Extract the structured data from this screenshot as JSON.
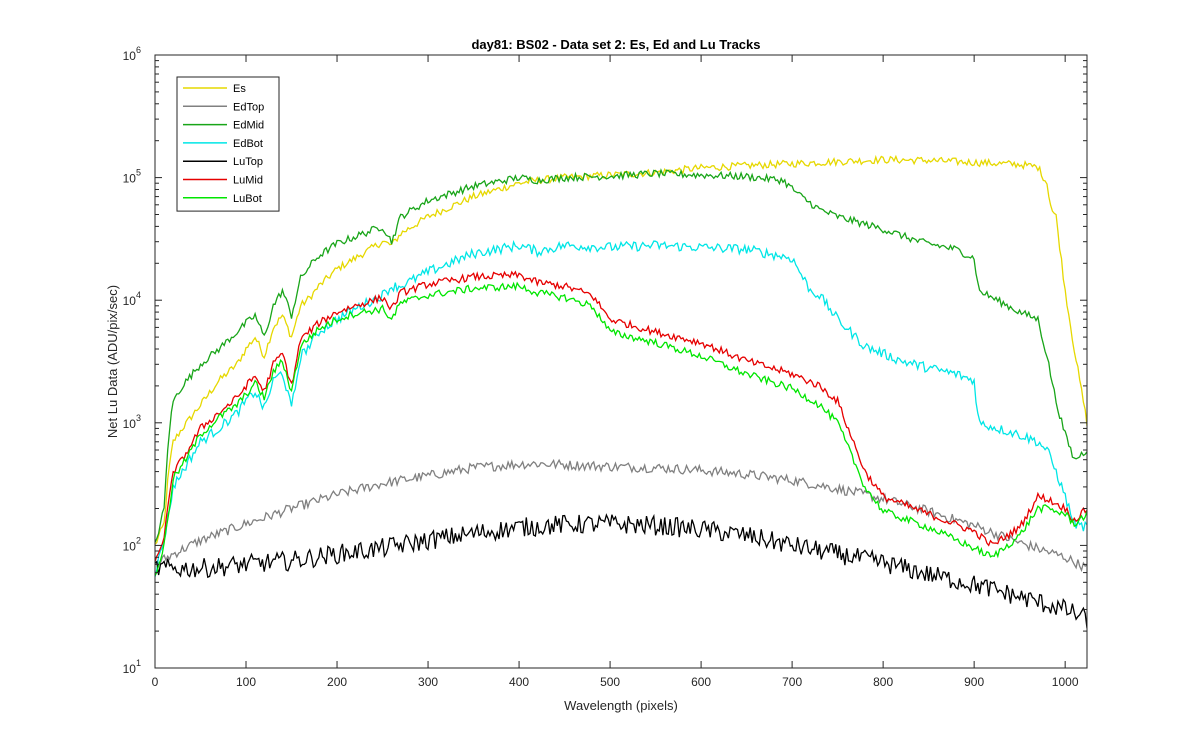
{
  "chart_data": {
    "type": "line",
    "title": "day81: BS02 - Data set 2: Es, Ed and Lu Tracks",
    "xlabel": "Wavelength (pixels)",
    "ylabel": "Net Lu Data (ADU/pix/sec)",
    "xlim": [
      0,
      1024
    ],
    "ylim": [
      10,
      1000000
    ],
    "yscale": "log",
    "x_ticks": [
      0,
      100,
      200,
      300,
      400,
      500,
      600,
      700,
      800,
      900,
      1000
    ],
    "y_ticks": [
      {
        "value": 10,
        "base": "10",
        "exp": "1"
      },
      {
        "value": 100,
        "base": "10",
        "exp": "2"
      },
      {
        "value": 1000,
        "base": "10",
        "exp": "3"
      },
      {
        "value": 10000,
        "base": "10",
        "exp": "4"
      },
      {
        "value": 100000,
        "base": "10",
        "exp": "5"
      },
      {
        "value": 1000000,
        "base": "10",
        "exp": "6"
      }
    ],
    "grid": false,
    "legend_position": "top-left",
    "series": [
      {
        "name": "Es",
        "color": "#e6d800",
        "noise": 0.03,
        "points": [
          [
            0,
            100
          ],
          [
            10,
            150
          ],
          [
            15,
            400
          ],
          [
            20,
            700
          ],
          [
            30,
            900
          ],
          [
            50,
            1400
          ],
          [
            70,
            2200
          ],
          [
            90,
            3000
          ],
          [
            100,
            4000
          ],
          [
            110,
            5000
          ],
          [
            120,
            3500
          ],
          [
            130,
            6000
          ],
          [
            140,
            7500
          ],
          [
            150,
            5000
          ],
          [
            160,
            9000
          ],
          [
            170,
            10500
          ],
          [
            180,
            13000
          ],
          [
            200,
            18000
          ],
          [
            220,
            22000
          ],
          [
            250,
            30000
          ],
          [
            260,
            28000
          ],
          [
            270,
            35000
          ],
          [
            300,
            48000
          ],
          [
            350,
            70000
          ],
          [
            400,
            90000
          ],
          [
            420,
            95000
          ],
          [
            450,
            100000
          ],
          [
            500,
            105000
          ],
          [
            550,
            110000
          ],
          [
            600,
            120000
          ],
          [
            650,
            125000
          ],
          [
            700,
            130000
          ],
          [
            750,
            135000
          ],
          [
            800,
            140000
          ],
          [
            850,
            138000
          ],
          [
            900,
            133000
          ],
          [
            950,
            128000
          ],
          [
            970,
            122000
          ],
          [
            980,
            90000
          ],
          [
            985,
            55000
          ],
          [
            990,
            48000
          ],
          [
            1000,
            12000
          ],
          [
            1010,
            4000
          ],
          [
            1024,
            1000
          ]
        ]
      },
      {
        "name": "EdTop",
        "color": "#808080",
        "noise": 0.04,
        "points": [
          [
            0,
            70
          ],
          [
            20,
            85
          ],
          [
            50,
            110
          ],
          [
            100,
            150
          ],
          [
            150,
            200
          ],
          [
            200,
            260
          ],
          [
            250,
            320
          ],
          [
            300,
            370
          ],
          [
            350,
            430
          ],
          [
            400,
            460
          ],
          [
            420,
            465
          ],
          [
            450,
            455
          ],
          [
            500,
            440
          ],
          [
            550,
            430
          ],
          [
            600,
            410
          ],
          [
            650,
            380
          ],
          [
            700,
            340
          ],
          [
            750,
            290
          ],
          [
            800,
            240
          ],
          [
            850,
            190
          ],
          [
            900,
            145
          ],
          [
            950,
            105
          ],
          [
            1000,
            80
          ],
          [
            1024,
            65
          ]
        ]
      },
      {
        "name": "EdMid",
        "color": "#19a519",
        "noise": 0.03,
        "points": [
          [
            0,
            100
          ],
          [
            10,
            200
          ],
          [
            15,
            800
          ],
          [
            20,
            1500
          ],
          [
            30,
            2000
          ],
          [
            50,
            3000
          ],
          [
            70,
            4000
          ],
          [
            90,
            5500
          ],
          [
            100,
            6500
          ],
          [
            110,
            7500
          ],
          [
            120,
            5000
          ],
          [
            130,
            9000
          ],
          [
            140,
            12000
          ],
          [
            150,
            7500
          ],
          [
            160,
            15000
          ],
          [
            170,
            19000
          ],
          [
            180,
            23000
          ],
          [
            200,
            29000
          ],
          [
            220,
            33000
          ],
          [
            250,
            40000
          ],
          [
            260,
            30000
          ],
          [
            270,
            48000
          ],
          [
            300,
            65000
          ],
          [
            350,
            85000
          ],
          [
            400,
            100000
          ],
          [
            420,
            95000
          ],
          [
            450,
            100000
          ],
          [
            500,
            103000
          ],
          [
            550,
            108000
          ],
          [
            600,
            105000
          ],
          [
            650,
            102000
          ],
          [
            690,
            95000
          ],
          [
            710,
            70000
          ],
          [
            730,
            55000
          ],
          [
            750,
            48000
          ],
          [
            800,
            38000
          ],
          [
            840,
            30000
          ],
          [
            880,
            26000
          ],
          [
            900,
            22000
          ],
          [
            905,
            12000
          ],
          [
            950,
            8000
          ],
          [
            970,
            7000
          ],
          [
            980,
            3500
          ],
          [
            990,
            1500
          ],
          [
            1000,
            800
          ],
          [
            1010,
            500
          ],
          [
            1024,
            600
          ]
        ]
      },
      {
        "name": "EdBot",
        "color": "#00e6e6",
        "noise": 0.04,
        "points": [
          [
            0,
            60
          ],
          [
            10,
            110
          ],
          [
            20,
            300
          ],
          [
            30,
            400
          ],
          [
            50,
            700
          ],
          [
            70,
            900
          ],
          [
            90,
            1200
          ],
          [
            100,
            1500
          ],
          [
            110,
            1800
          ],
          [
            120,
            1300
          ],
          [
            130,
            2200
          ],
          [
            140,
            2600
          ],
          [
            150,
            1300
          ],
          [
            160,
            3500
          ],
          [
            170,
            4300
          ],
          [
            180,
            5500
          ],
          [
            200,
            7000
          ],
          [
            220,
            8500
          ],
          [
            250,
            11000
          ],
          [
            260,
            13000
          ],
          [
            270,
            13000
          ],
          [
            300,
            17000
          ],
          [
            350,
            24000
          ],
          [
            400,
            28000
          ],
          [
            420,
            25000
          ],
          [
            450,
            28000
          ],
          [
            500,
            27000
          ],
          [
            550,
            28000
          ],
          [
            600,
            27000
          ],
          [
            650,
            26000
          ],
          [
            700,
            22000
          ],
          [
            720,
            12000
          ],
          [
            730,
            11000
          ],
          [
            750,
            7000
          ],
          [
            780,
            4200
          ],
          [
            820,
            3200
          ],
          [
            850,
            2800
          ],
          [
            880,
            2500
          ],
          [
            900,
            2200
          ],
          [
            905,
            1000
          ],
          [
            950,
            800
          ],
          [
            970,
            700
          ],
          [
            980,
            600
          ],
          [
            990,
            400
          ],
          [
            1000,
            250
          ],
          [
            1010,
            150
          ],
          [
            1024,
            140
          ]
        ]
      },
      {
        "name": "LuTop",
        "color": "#000000",
        "noise": 0.08,
        "points": [
          [
            0,
            65
          ],
          [
            50,
            65
          ],
          [
            100,
            70
          ],
          [
            150,
            75
          ],
          [
            200,
            85
          ],
          [
            250,
            95
          ],
          [
            300,
            110
          ],
          [
            350,
            125
          ],
          [
            400,
            140
          ],
          [
            450,
            148
          ],
          [
            500,
            150
          ],
          [
            550,
            145
          ],
          [
            600,
            135
          ],
          [
            650,
            120
          ],
          [
            700,
            100
          ],
          [
            750,
            85
          ],
          [
            800,
            72
          ],
          [
            850,
            58
          ],
          [
            900,
            48
          ],
          [
            950,
            38
          ],
          [
            1000,
            30
          ],
          [
            1024,
            25
          ]
        ]
      },
      {
        "name": "LuMid",
        "color": "#e60000",
        "noise": 0.03,
        "points": [
          [
            0,
            70
          ],
          [
            10,
            120
          ],
          [
            20,
            400
          ],
          [
            30,
            500
          ],
          [
            50,
            900
          ],
          [
            70,
            1200
          ],
          [
            90,
            1600
          ],
          [
            100,
            2000
          ],
          [
            110,
            2400
          ],
          [
            120,
            1800
          ],
          [
            130,
            3000
          ],
          [
            140,
            3700
          ],
          [
            150,
            2000
          ],
          [
            160,
            4800
          ],
          [
            170,
            5600
          ],
          [
            180,
            6500
          ],
          [
            200,
            8000
          ],
          [
            220,
            9000
          ],
          [
            250,
            10500
          ],
          [
            260,
            8500
          ],
          [
            270,
            11500
          ],
          [
            300,
            13500
          ],
          [
            350,
            15500
          ],
          [
            400,
            16000
          ],
          [
            420,
            14000
          ],
          [
            450,
            13000
          ],
          [
            480,
            11000
          ],
          [
            500,
            7000
          ],
          [
            550,
            5500
          ],
          [
            600,
            4500
          ],
          [
            650,
            3200
          ],
          [
            700,
            2500
          ],
          [
            730,
            2000
          ],
          [
            750,
            1500
          ],
          [
            780,
            400
          ],
          [
            800,
            250
          ],
          [
            850,
            180
          ],
          [
            900,
            130
          ],
          [
            920,
            100
          ],
          [
            950,
            140
          ],
          [
            970,
            250
          ],
          [
            980,
            240
          ],
          [
            1000,
            200
          ],
          [
            1010,
            160
          ],
          [
            1024,
            200
          ]
        ]
      },
      {
        "name": "LuBot",
        "color": "#00e600",
        "noise": 0.03,
        "points": [
          [
            0,
            55
          ],
          [
            10,
            100
          ],
          [
            20,
            350
          ],
          [
            30,
            450
          ],
          [
            50,
            800
          ],
          [
            70,
            1100
          ],
          [
            90,
            1400
          ],
          [
            100,
            1700
          ],
          [
            110,
            2100
          ],
          [
            120,
            1600
          ],
          [
            130,
            2600
          ],
          [
            140,
            3200
          ],
          [
            150,
            1800
          ],
          [
            160,
            4200
          ],
          [
            170,
            5000
          ],
          [
            180,
            5800
          ],
          [
            200,
            7000
          ],
          [
            220,
            7800
          ],
          [
            250,
            8500
          ],
          [
            260,
            7000
          ],
          [
            270,
            9500
          ],
          [
            300,
            11000
          ],
          [
            350,
            12500
          ],
          [
            400,
            13000
          ],
          [
            420,
            11500
          ],
          [
            450,
            10500
          ],
          [
            480,
            9000
          ],
          [
            500,
            5500
          ],
          [
            550,
            4500
          ],
          [
            600,
            3500
          ],
          [
            650,
            2500
          ],
          [
            700,
            1900
          ],
          [
            730,
            1400
          ],
          [
            750,
            1000
          ],
          [
            780,
            300
          ],
          [
            800,
            190
          ],
          [
            850,
            140
          ],
          [
            900,
            95
          ],
          [
            920,
            80
          ],
          [
            950,
            120
          ],
          [
            970,
            200
          ],
          [
            980,
            200
          ],
          [
            1000,
            180
          ],
          [
            1010,
            150
          ],
          [
            1024,
            180
          ]
        ]
      }
    ]
  }
}
